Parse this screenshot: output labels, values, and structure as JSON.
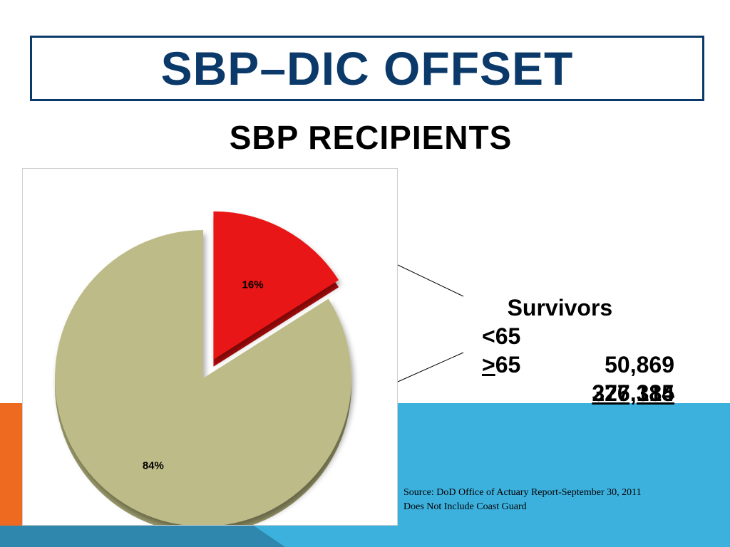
{
  "slide": {
    "title": "SBP–DIC OFFSET",
    "subtitle": "SBP RECIPIENTS"
  },
  "colors": {
    "title_blue": "#0b3a6a",
    "slice_red": "#e81414",
    "slice_tan": "#bdbc88",
    "band_orange": "#ef6a21",
    "band_blue": "#3db1de"
  },
  "chart_data": {
    "type": "pie",
    "exploded_slice": 0,
    "slices": [
      {
        "label": "16%",
        "value": 16,
        "color": "#e81414"
      },
      {
        "label": "84%",
        "value": 84,
        "color": "#bdbc88"
      }
    ]
  },
  "survivors": {
    "heading": "Survivors",
    "rows": [
      {
        "prefix": "<",
        "rest": "65",
        "value": "50,869"
      },
      {
        "prefix": ">",
        "rest": "65",
        "value": "276,315"
      }
    ],
    "total": "327,184"
  },
  "source": {
    "line1": "Source:  DoD Office of Actuary Report-September 30, 2011",
    "line2": "Does Not Include Coast Guard"
  }
}
